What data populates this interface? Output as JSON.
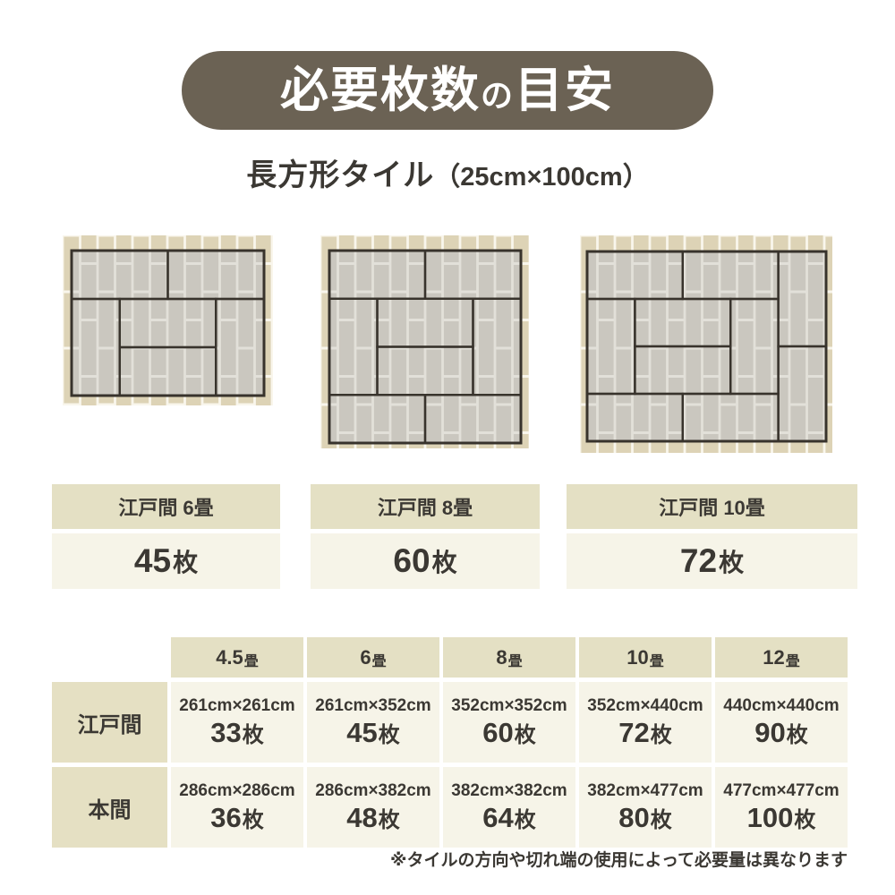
{
  "title": {
    "pre": "必要枚数",
    "particle": "の",
    "post": "目安",
    "bg_color": "#6b6254",
    "text_color": "#ffffff"
  },
  "subtitle": {
    "main": "長方形タイル",
    "paren": "（25cm×100cm）"
  },
  "tile_spec": {
    "width_cm": 25,
    "height_cm": 100
  },
  "colors": {
    "beige_tile": "#ddd3b6",
    "beige_gap": "#f9f6ec",
    "gray_tile": "#cac7bf",
    "gray_gap": "#e2e0d9",
    "outline": "#38332c",
    "header_bg": "#e4e0c4",
    "cell_bg": "#f6f4e8"
  },
  "diagrams": [
    {
      "label": "江戸間 6畳",
      "grid": [
        4,
        3
      ],
      "mats": [
        [
          0,
          0,
          2,
          1
        ],
        [
          2,
          0,
          2,
          1
        ],
        [
          0,
          1,
          1,
          2
        ],
        [
          1,
          1,
          2,
          1
        ],
        [
          1,
          2,
          2,
          1
        ],
        [
          3,
          1,
          1,
          2
        ]
      ]
    },
    {
      "label": "江戸間 8畳",
      "grid": [
        4,
        4
      ],
      "mats": [
        [
          0,
          0,
          2,
          1
        ],
        [
          2,
          0,
          2,
          1
        ],
        [
          0,
          1,
          1,
          2
        ],
        [
          1,
          1,
          2,
          1
        ],
        [
          1,
          2,
          2,
          1
        ],
        [
          3,
          1,
          1,
          2
        ],
        [
          0,
          3,
          2,
          1
        ],
        [
          2,
          3,
          2,
          1
        ]
      ]
    },
    {
      "label": "江戸間 10畳",
      "grid": [
        5,
        4
      ],
      "mats": [
        [
          0,
          0,
          2,
          1
        ],
        [
          2,
          0,
          2,
          1
        ],
        [
          4,
          0,
          1,
          2
        ],
        [
          0,
          1,
          1,
          2
        ],
        [
          1,
          1,
          2,
          1
        ],
        [
          1,
          2,
          2,
          1
        ],
        [
          3,
          1,
          1,
          2
        ],
        [
          4,
          2,
          1,
          2
        ],
        [
          0,
          3,
          2,
          1
        ],
        [
          2,
          3,
          2,
          1
        ]
      ]
    }
  ],
  "cards": [
    {
      "label": "江戸間 6畳",
      "count": "45",
      "unit": "枚"
    },
    {
      "label": "江戸間 8畳",
      "count": "60",
      "unit": "枚"
    },
    {
      "label": "江戸間 10畳",
      "count": "72",
      "unit": "枚"
    }
  ],
  "table": {
    "col_headers": [
      {
        "value": "4.5",
        "unit": "畳"
      },
      {
        "value": "6",
        "unit": "畳"
      },
      {
        "value": "8",
        "unit": "畳"
      },
      {
        "value": "10",
        "unit": "畳"
      },
      {
        "value": "12",
        "unit": "畳"
      }
    ],
    "rows": [
      {
        "label": "江戸間",
        "cells": [
          {
            "size": "261cm×261cm",
            "count": "33",
            "unit": "枚"
          },
          {
            "size": "261cm×352cm",
            "count": "45",
            "unit": "枚"
          },
          {
            "size": "352cm×352cm",
            "count": "60",
            "unit": "枚"
          },
          {
            "size": "352cm×440cm",
            "count": "72",
            "unit": "枚"
          },
          {
            "size": "440cm×440cm",
            "count": "90",
            "unit": "枚"
          }
        ]
      },
      {
        "label": "本間",
        "cells": [
          {
            "size": "286cm×286cm",
            "count": "36",
            "unit": "枚"
          },
          {
            "size": "286cm×382cm",
            "count": "48",
            "unit": "枚"
          },
          {
            "size": "382cm×382cm",
            "count": "64",
            "unit": "枚"
          },
          {
            "size": "382cm×477cm",
            "count": "80",
            "unit": "枚"
          },
          {
            "size": "477cm×477cm",
            "count": "100",
            "unit": "枚"
          }
        ]
      }
    ]
  },
  "note": "※タイルの方向や切れ端の使用によって必要量は異なります"
}
